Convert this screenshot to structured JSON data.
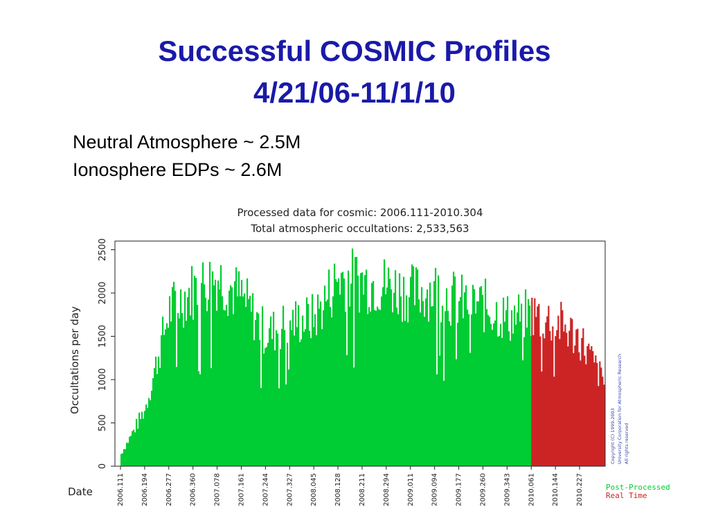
{
  "slide": {
    "title_line1": "Successful COSMIC Profiles",
    "title_line2": "4/21/06-11/1/10",
    "subtitle_line1": "Neutral Atmosphere ~ 2.5M",
    "subtitle_line2": "Ionosphere EDPs ~ 2.6M"
  },
  "chart_data": {
    "type": "bar",
    "title": "Processed data for cosmic: 2006.111-2010.304",
    "subtitle": "Total atmospheric occultations: 2,533,563",
    "xlabel": "Date",
    "ylabel": "Occultations per day",
    "ylim": [
      0,
      2600
    ],
    "yticks": [
      0,
      500,
      1000,
      1500,
      2000,
      2500
    ],
    "xticks": [
      "2006.111",
      "2006.194",
      "2006.277",
      "2006.360",
      "2007.078",
      "2007.161",
      "2007.244",
      "2007.327",
      "2008.045",
      "2008.128",
      "2008.211",
      "2008.294",
      "2009.011",
      "2009.094",
      "2009.177",
      "2009.260",
      "2009.343",
      "2010.061",
      "2010.144",
      "2010.227"
    ],
    "legend": [
      {
        "name": "Post-Processed",
        "color": "#00cc33"
      },
      {
        "name": "Real Time",
        "color": "#cc2222"
      }
    ],
    "legend_position": "bottom-right",
    "copyright": [
      "Copyright (C) 1999-2003",
      "University Corporation for Atmospheric Research",
      "All rights reserved"
    ],
    "series": [
      {
        "name": "Post-Processed",
        "color": "#00cc33",
        "x": [
          "2006.111",
          "2006.194",
          "2006.277",
          "2006.360",
          "2007.078",
          "2007.161",
          "2007.244",
          "2007.327",
          "2008.045",
          "2008.128",
          "2008.211",
          "2008.294",
          "2009.011",
          "2009.094",
          "2009.177",
          "2009.260",
          "2009.343",
          "2010.061"
        ],
        "values": [
          150,
          700,
          1900,
          2150,
          2300,
          2050,
          1600,
          1750,
          1800,
          2300,
          2250,
          2200,
          2100,
          2150,
          2000,
          1950,
          1800,
          1850
        ]
      },
      {
        "name": "Real Time",
        "color": "#cc2222",
        "x": [
          "2010.061",
          "2010.144",
          "2010.227",
          "2010.304"
        ],
        "values": [
          1850,
          1750,
          1550,
          1000
        ]
      }
    ]
  }
}
